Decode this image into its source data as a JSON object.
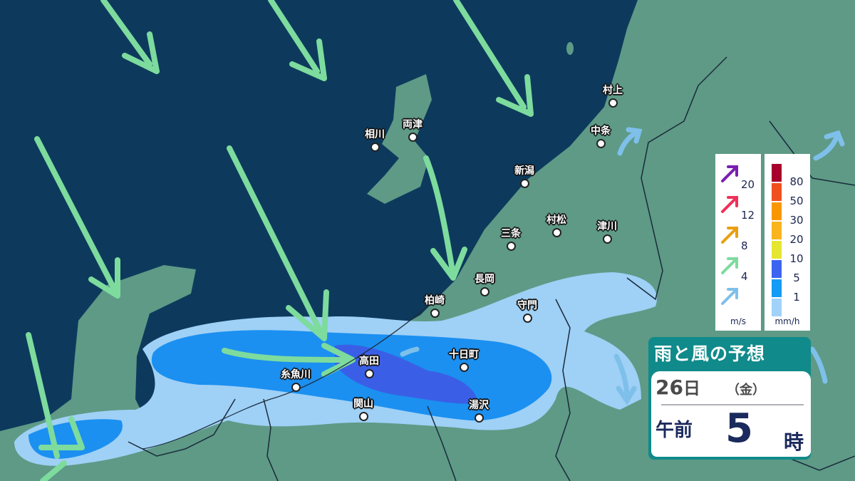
{
  "title": "雨と風の予想",
  "date": {
    "day": "26",
    "day_unit": "日",
    "weekday": "（金）"
  },
  "time": {
    "period": "午前",
    "hour": "5",
    "hour_unit": "時"
  },
  "colors": {
    "sea": "#0d3a5c",
    "land": "#5e9a86",
    "wind_arrow": "#7ddb9e",
    "rain_light": "#9fd0f6",
    "rain_mid": "#1b90f0",
    "rain_heavy": "#3a5fe6"
  },
  "cities": [
    {
      "name": "村上"
    },
    {
      "name": "中条"
    },
    {
      "name": "相川"
    },
    {
      "name": "両津"
    },
    {
      "name": "新潟"
    },
    {
      "name": "村松"
    },
    {
      "name": "津川"
    },
    {
      "name": "三条"
    },
    {
      "name": "長岡"
    },
    {
      "name": "柏崎"
    },
    {
      "name": "守門"
    },
    {
      "name": "高田"
    },
    {
      "name": "十日町"
    },
    {
      "name": "糸魚川"
    },
    {
      "name": "関山"
    },
    {
      "name": "湯沢"
    }
  ],
  "wind_legend": {
    "unit": "m/s",
    "items": [
      {
        "value": "20",
        "color": "#7a1fb0"
      },
      {
        "value": "12",
        "color": "#f0305a"
      },
      {
        "value": "8",
        "color": "#e8a010"
      },
      {
        "value": "4",
        "color": "#7ddb9e"
      },
      {
        "value": "",
        "color": "#7ec0ea"
      }
    ]
  },
  "rain_legend": {
    "unit": "mm/h",
    "colors": [
      "#a8002c",
      "#f0501e",
      "#fa9600",
      "#fab41e",
      "#e6e632",
      "#3c64f0",
      "#149bf5",
      "#a0d2fa"
    ],
    "labels": [
      "80",
      "50",
      "30",
      "20",
      "10",
      "5",
      "1"
    ]
  }
}
